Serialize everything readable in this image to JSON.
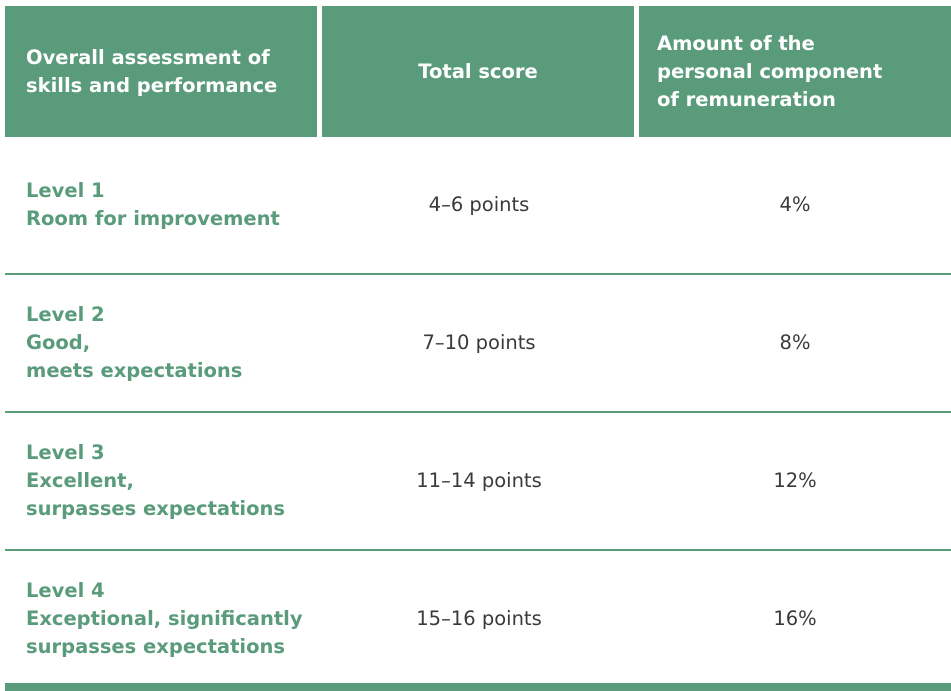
{
  "header": {
    "col1": "Overall assessment of\nskills and performance",
    "col2": "Total score",
    "col3": "Amount of the\npersonal component\nof remuneration"
  },
  "rows": [
    {
      "level": "Level 1\nRoom for improvement",
      "score": "4–6 points",
      "amount": "4%"
    },
    {
      "level": "Level 2\nGood,\nmeets expectations",
      "score": "7–10 points",
      "amount": "8%"
    },
    {
      "level": "Level 3\nExcellent,\nsurpasses expectations",
      "score": "11–14 points",
      "amount": "12%"
    },
    {
      "level": "Level 4\nExceptional, significantly\nsurpasses expectations",
      "score": "15–16 points",
      "amount": "16%"
    }
  ],
  "colors": {
    "accent": "#5a9b7b",
    "text": "#3a3a3a",
    "background": "#ffffff"
  }
}
